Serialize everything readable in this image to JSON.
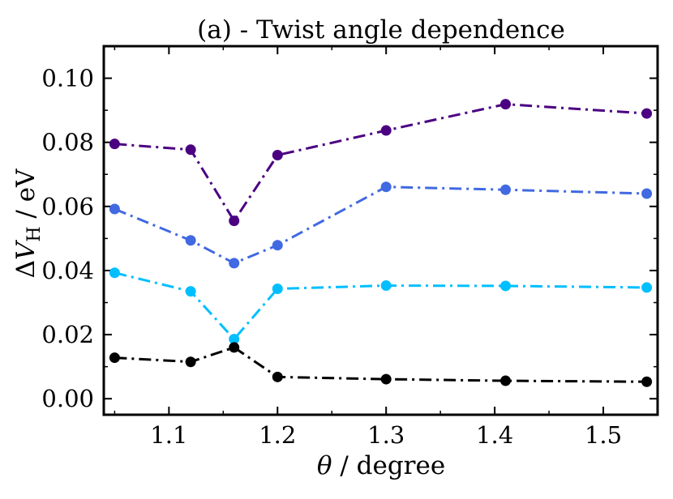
{
  "chart_data": {
    "type": "line",
    "title": "(a) - Twist angle dependence",
    "xlabel_symbol": "θ",
    "xlabel_rest": " / degree",
    "ylabel_delta": "Δ",
    "ylabel_v": "V",
    "ylabel_sub": "H",
    "ylabel_rest": " / eV",
    "xlim": [
      1.04,
      1.55
    ],
    "ylim": [
      -0.005,
      0.11
    ],
    "xticks": [
      1.1,
      1.2,
      1.3,
      1.4,
      1.5
    ],
    "xtick_labels": [
      "1.1",
      "1.2",
      "1.3",
      "1.4",
      "1.5"
    ],
    "yticks": [
      0.0,
      0.02,
      0.04,
      0.06,
      0.08,
      0.1
    ],
    "ytick_labels": [
      "0.00",
      "0.02",
      "0.04",
      "0.06",
      "0.08",
      "0.10"
    ],
    "x": [
      1.05,
      1.12,
      1.16,
      1.2,
      1.3,
      1.41,
      1.54
    ],
    "grid": false,
    "series": [
      {
        "name": "purple",
        "color": "#4b0082",
        "values": [
          0.0795,
          0.0777,
          0.0555,
          0.076,
          0.0837,
          0.0919,
          0.089
        ]
      },
      {
        "name": "royal-blue",
        "color": "#4169e1",
        "values": [
          0.0592,
          0.0494,
          0.0423,
          0.0479,
          0.0661,
          0.0652,
          0.064
        ]
      },
      {
        "name": "deep-sky-blue",
        "color": "#00bfff",
        "values": [
          0.0393,
          0.0335,
          0.0186,
          0.0343,
          0.0353,
          0.0352,
          0.0347
        ]
      },
      {
        "name": "black",
        "color": "#000000",
        "values": [
          0.0128,
          0.0115,
          0.016,
          0.0068,
          0.0061,
          0.0056,
          0.0053
        ]
      }
    ]
  }
}
